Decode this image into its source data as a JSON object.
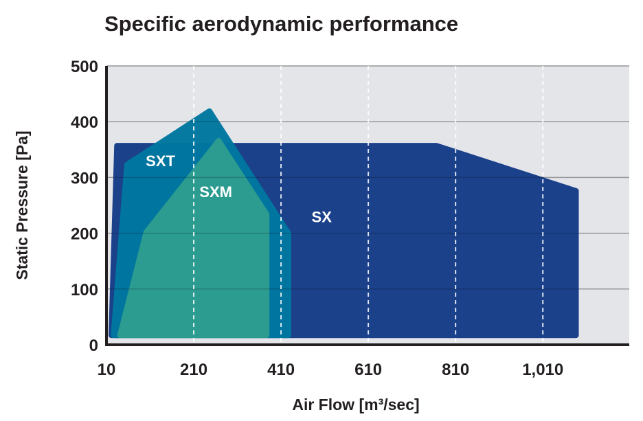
{
  "chart_data": {
    "type": "area",
    "title": "Specific aerodynamic performance",
    "xlabel": "Air Flow [m³/sec]",
    "ylabel": "Static Pressure [Pa]",
    "xlim": [
      10,
      1208
    ],
    "ylim": [
      0,
      500
    ],
    "xticks": [
      10,
      210,
      410,
      610,
      810,
      1010
    ],
    "xtick_labels": [
      "10",
      "210",
      "410",
      "610",
      "810",
      "1,010"
    ],
    "yticks": [
      0,
      100,
      200,
      300,
      400,
      500
    ],
    "ytick_labels": [
      "0",
      "100",
      "200",
      "300",
      "400",
      "500"
    ],
    "grid": {
      "horizontal": "solid",
      "vertical": "dashed"
    },
    "background_color": "#e4e5e9",
    "series": [
      {
        "name": "SX",
        "color": "#1b418a",
        "label_at": [
          480,
          220
        ],
        "points": [
          [
            21,
            17
          ],
          [
            34,
            357
          ],
          [
            766,
            357
          ],
          [
            1086,
            276
          ],
          [
            1086,
            17
          ]
        ]
      },
      {
        "name": "SXT",
        "color": "#0077a0",
        "label_at": [
          100,
          320
        ],
        "points": [
          [
            26,
            17
          ],
          [
            57,
            323
          ],
          [
            246,
            419
          ],
          [
            427,
            200
          ],
          [
            427,
            17
          ]
        ]
      },
      {
        "name": "SXM",
        "color": "#2e9d90",
        "label_at": [
          223,
          265
        ],
        "points": [
          [
            41,
            17
          ],
          [
            101,
            202
          ],
          [
            267,
            366
          ],
          [
            377,
            234
          ],
          [
            377,
            17
          ]
        ]
      }
    ]
  }
}
